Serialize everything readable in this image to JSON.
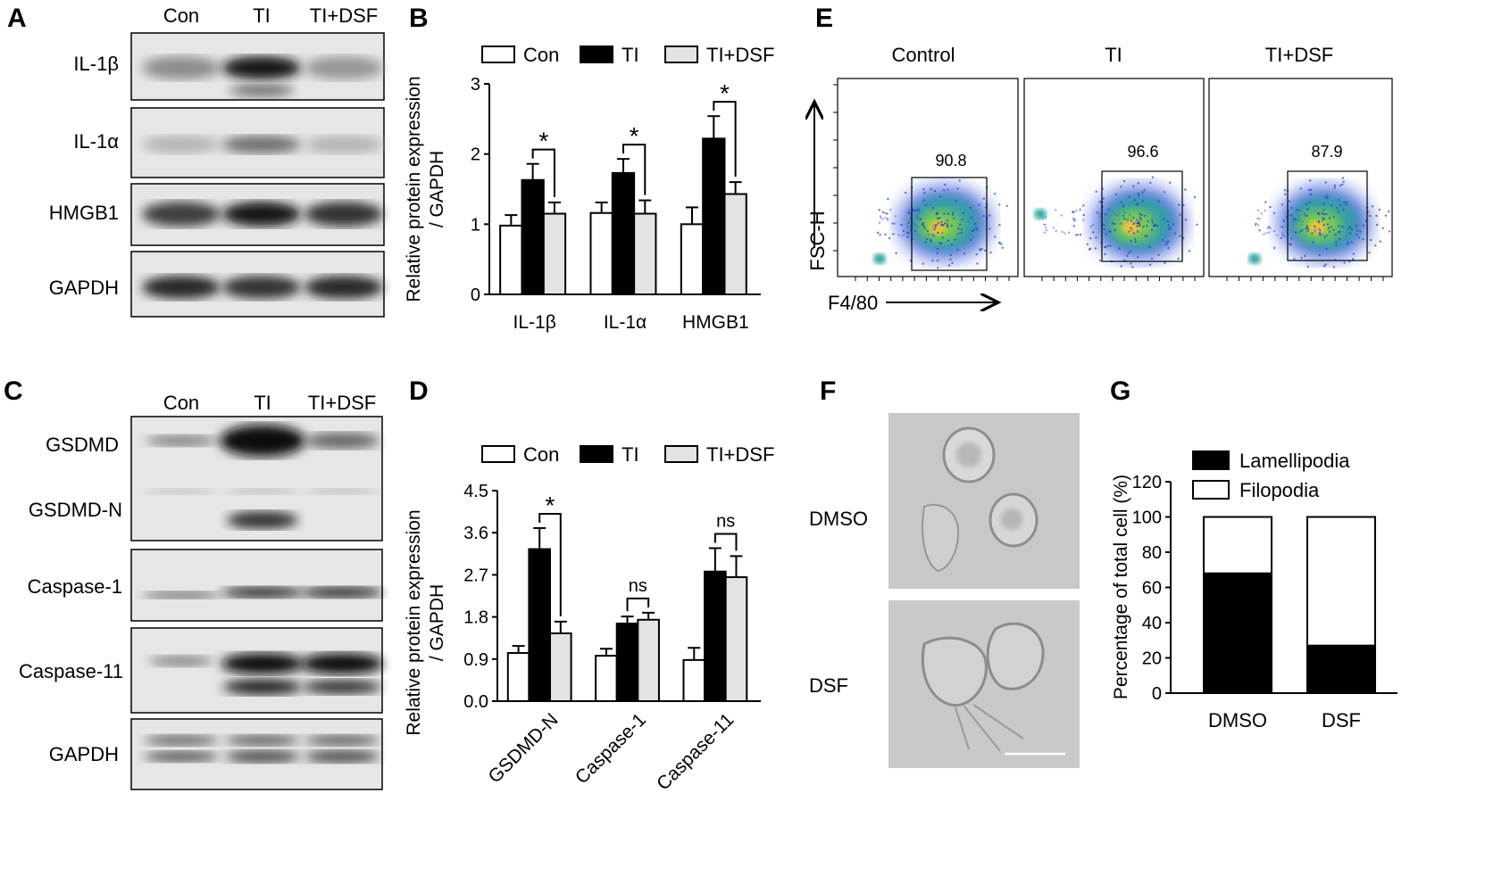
{
  "panels": {
    "A": {
      "letter": "A",
      "lanes": [
        "Con",
        "TI",
        "TI+DSF"
      ],
      "rows": [
        "IL-1β",
        "IL-1α",
        "HMGB1",
        "GAPDH"
      ],
      "band_levels": [
        [
          0.35,
          0.95,
          0.3
        ],
        [
          0.15,
          0.5,
          0.15
        ],
        [
          0.75,
          0.95,
          0.8
        ],
        [
          0.85,
          0.8,
          0.85
        ]
      ]
    },
    "B": {
      "letter": "B",
      "ylabel_line1": "Relative protein expression",
      "ylabel_line2": "/ GAPDH",
      "sig": [
        "*",
        "*",
        "*"
      ]
    },
    "C": {
      "letter": "C",
      "lanes": [
        "Con",
        "TI",
        "TI+DSF"
      ],
      "rows": [
        "GSDMD",
        "GSDMD-N",
        "Caspase-1",
        "Caspase-11",
        "GAPDH"
      ]
    },
    "D": {
      "letter": "D",
      "ylabel_line1": "Relative protein expression",
      "ylabel_line2": "/ GAPDH",
      "sig": [
        "*",
        "ns",
        "ns"
      ]
    },
    "E": {
      "letter": "E",
      "plots": [
        {
          "title": "Control",
          "percent": "90.8"
        },
        {
          "title": "TI",
          "percent": "96.6"
        },
        {
          "title": "TI+DSF",
          "percent": "87.9"
        }
      ],
      "ylabel": "FSC-H",
      "xlabel": "F4/80"
    },
    "F": {
      "letter": "F",
      "labels": [
        "DMSO",
        "DSF"
      ]
    },
    "G": {
      "letter": "G"
    }
  },
  "chart_data": [
    {
      "panel": "B",
      "type": "bar",
      "categories": [
        "IL-1β",
        "IL-1α",
        "HMGB1"
      ],
      "series": [
        {
          "name": "Con",
          "values": [
            0.98,
            1.16,
            1.0
          ],
          "errors": [
            0.15,
            0.15,
            0.24
          ],
          "color": "#ffffff"
        },
        {
          "name": "TI",
          "values": [
            1.63,
            1.73,
            2.22
          ],
          "errors": [
            0.23,
            0.2,
            0.32
          ],
          "color": "#000000"
        },
        {
          "name": "TI+DSF",
          "values": [
            1.15,
            1.15,
            1.43
          ],
          "errors": [
            0.16,
            0.19,
            0.17
          ],
          "color": "#e3e3e3"
        }
      ],
      "ylabel": "Relative protein expression / GAPDH",
      "ylim": [
        0,
        3
      ],
      "yticks": [
        "0",
        "1",
        "2",
        "3"
      ],
      "legend": "top"
    },
    {
      "panel": "D",
      "type": "bar",
      "categories": [
        "GSDMD-N",
        "Caspase-1",
        "Caspase-11"
      ],
      "series": [
        {
          "name": "Con",
          "values": [
            1.03,
            0.97,
            0.88
          ],
          "errors": [
            0.15,
            0.15,
            0.26
          ],
          "color": "#ffffff"
        },
        {
          "name": "TI",
          "values": [
            3.25,
            1.66,
            2.77
          ],
          "errors": [
            0.45,
            0.15,
            0.5
          ],
          "color": "#000000"
        },
        {
          "name": "TI+DSF",
          "values": [
            1.45,
            1.74,
            2.65
          ],
          "errors": [
            0.25,
            0.15,
            0.45
          ],
          "color": "#e3e3e3"
        }
      ],
      "ylabel": "Relative protein expression / GAPDH",
      "ylim": [
        0,
        4.5
      ],
      "yticks": [
        "0.0",
        "0.9",
        "1.8",
        "2.7",
        "3.6",
        "4.5"
      ],
      "legend": "top"
    },
    {
      "panel": "G",
      "type": "bar",
      "stacked": true,
      "categories": [
        "DMSO",
        "DSF"
      ],
      "series": [
        {
          "name": "Lamellipodia",
          "values": [
            68,
            27
          ],
          "color": "#000000"
        },
        {
          "name": "Filopodia",
          "values": [
            32,
            73
          ],
          "color": "#ffffff"
        }
      ],
      "ylabel": "Percentage of total cell (%)",
      "ylim": [
        0,
        120
      ],
      "yticks": [
        "0",
        "20",
        "40",
        "60",
        "80",
        "100",
        "120"
      ],
      "legend": "top-right"
    }
  ]
}
